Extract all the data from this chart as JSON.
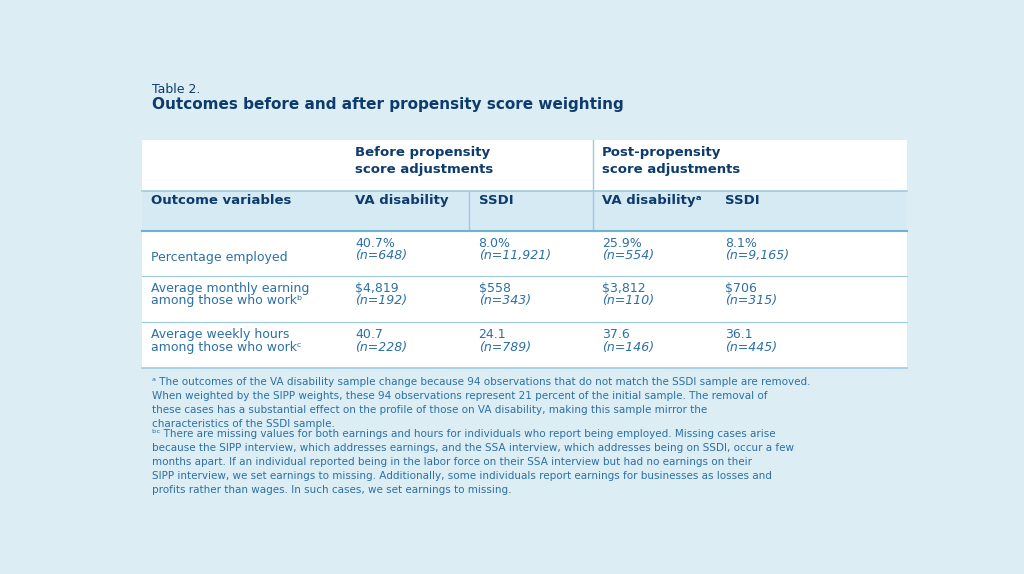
{
  "title_line1": "Table 2.",
  "title_line2": "Outcomes before and after propensity score weighting",
  "bg_color": "#dceef4",
  "table_bg": "#ffffff",
  "subheader_bg": "#d6eaf4",
  "header_color": "#0d3b6e",
  "body_text_color": "#2c6fa6",
  "footnote_color": "#2c6fa6",
  "col_header_before": "Before propensity\nscore adjustments",
  "col_header_after": "Post-propensity\nscore adjustments",
  "sub_headers": [
    "VA disability",
    "SSDI",
    "VA disabilityᵃ",
    "SSDI"
  ],
  "row_label_col": "Outcome variables",
  "rows": [
    {
      "label_line1": "",
      "label_line2": "Percentage employed",
      "values_line1": [
        "40.7%",
        "8.0%",
        "25.9%",
        "8.1%"
      ],
      "values_line2": [
        "(n=648)",
        "(n=11,921)",
        "(n=554)",
        "(n=9,165)"
      ]
    },
    {
      "label_line1": "Average monthly earning",
      "label_line2": "among those who workᵇ",
      "values_line1": [
        "$4,819",
        "$558",
        "$3,812",
        "$706"
      ],
      "values_line2": [
        "(n=192)",
        "(n=343)",
        "(n=110)",
        "(n=315)"
      ]
    },
    {
      "label_line1": "Average weekly hours",
      "label_line2": "among those who workᶜ",
      "values_line1": [
        "40.7",
        "24.1",
        "37.6",
        "36.1"
      ],
      "values_line2": [
        "(n=228)",
        "(n=789)",
        "(n=146)",
        "(n=445)"
      ]
    }
  ],
  "footnote_a": "ᵃ The outcomes of the VA disability sample change because 94 observations that do not match the SSDI sample are removed. When weighted by the SIPP weights, these 94 observations represent 21 percent of the initial sample. The removal of these cases has a substantial effect on the profile of those on VA disability, making this sample mirror the characteristics of the SSDI sample.",
  "footnote_bc": "ᵇᶜ There are missing values for both earnings and hours for individuals who report being employed. Missing cases arise because the SIPP interview, which addresses earnings, and the SSA interview, which addresses being on SSDI, occur a few months apart. If an individual reported being in the labor force on their SSA interview but had no earnings on their SIPP interview, we set earnings to missing. Additionally, some individuals report earnings for businesses as losses and profits rather than wages. In such cases, we set earnings to missing."
}
